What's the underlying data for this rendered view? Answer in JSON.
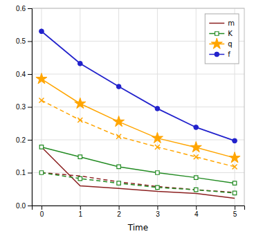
{
  "chart_data": {
    "type": "line",
    "xlabel": "Time",
    "x": [
      0,
      1,
      2,
      3,
      4,
      5
    ],
    "xlim": [
      -0.25,
      5.25
    ],
    "xticks": [
      0,
      1,
      2,
      3,
      4,
      5
    ],
    "ylim": [
      0.0,
      0.6
    ],
    "yticks": [
      {
        "value": 0.0,
        "label": "0.0"
      },
      0.1,
      0.2,
      0.3,
      0.4,
      0.5,
      0.6
    ],
    "grid": true,
    "legend": "upper right",
    "series": [
      {
        "name": "m",
        "color": "#8B2020",
        "line_style": "solid",
        "marker": "none",
        "values": [
          0.178,
          0.06,
          0.052,
          0.043,
          0.037,
          0.022
        ]
      },
      {
        "color": "#8B2020",
        "line_style": "dashed",
        "marker": "none",
        "values": [
          0.1,
          0.09,
          0.072,
          0.058,
          0.048,
          0.04
        ]
      },
      {
        "name": "K",
        "color": "#228B22",
        "line_style": "solid",
        "marker": "square",
        "values": [
          0.178,
          0.148,
          0.118,
          0.1,
          0.085,
          0.068
        ]
      },
      {
        "color": "#228B22",
        "line_style": "dashed",
        "marker": "square",
        "values": [
          0.1,
          0.082,
          0.068,
          0.055,
          0.048,
          0.038
        ]
      },
      {
        "name": "q",
        "color": "#FFA500",
        "line_style": "solid",
        "marker": "star",
        "values": [
          0.385,
          0.31,
          0.255,
          0.205,
          0.177,
          0.145
        ]
      },
      {
        "color": "#FFA500",
        "line_style": "dashed",
        "marker": "x",
        "values": [
          0.32,
          0.26,
          0.21,
          0.178,
          0.148,
          0.118
        ]
      },
      {
        "name": "f",
        "color": "#2222CC",
        "line_style": "solid",
        "marker": "circle",
        "values": [
          0.53,
          0.432,
          0.362,
          0.295,
          0.238,
          0.197
        ]
      }
    ]
  }
}
